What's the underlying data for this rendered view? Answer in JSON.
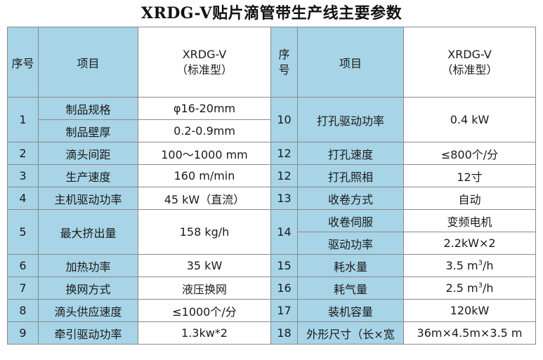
{
  "title": "XRDG-V贴片滴管带生产线主要参数",
  "header": {
    "seq_left": "序号",
    "item_left": "项目",
    "model_line1_left": "XRDG-V",
    "model_line2_left": "（标准型）",
    "seq_right_line1": "序",
    "seq_right_line2": "号",
    "item_right": "项目",
    "model_line1_right": "XRDG-V",
    "model_line2_right": "（标准型）"
  },
  "left": [
    {
      "no": "1",
      "items": [
        {
          "name": "制品规格",
          "value": "φ16-20mm"
        },
        {
          "name": "制品壁厚",
          "value": "0.2-0.9mm"
        }
      ]
    },
    {
      "no": "2",
      "items": [
        {
          "name": "滴头间距",
          "value": "100～1000 mm"
        }
      ]
    },
    {
      "no": "3",
      "items": [
        {
          "name": "生产速度",
          "value": "160 m/min"
        }
      ]
    },
    {
      "no": "4",
      "items": [
        {
          "name": "主机驱动功率",
          "value": "45 kW（直流）"
        }
      ]
    },
    {
      "no": "5",
      "items": [
        {
          "name": "最大挤出量",
          "value": "158 kg/h"
        }
      ]
    },
    {
      "no": "6",
      "items": [
        {
          "name": "加热功率",
          "value": "35 kW"
        }
      ]
    },
    {
      "no": "7",
      "items": [
        {
          "name": "换网方式",
          "value": "液压换网"
        }
      ]
    },
    {
      "no": "8",
      "items": [
        {
          "name": "滴头供应速度",
          "value": "≤1000个/分"
        }
      ]
    },
    {
      "no": "9",
      "items": [
        {
          "name": "牵引驱动功率",
          "value": "1.3kw*2"
        }
      ]
    }
  ],
  "right": [
    {
      "no": "10",
      "name": "打孔驱动功率",
      "value": "0.4 kW"
    },
    {
      "no": "12",
      "name": "打孔速度",
      "value": "≤800个/分"
    },
    {
      "no": "12",
      "name": "打孔照相",
      "value": "12寸"
    },
    {
      "no": "13",
      "name": "收卷方式",
      "value": "自动"
    },
    {
      "no": "14",
      "sub": [
        {
          "name": "收卷伺服",
          "value": "变频电机"
        },
        {
          "name": "驱动功率",
          "value": "2.2kW×2"
        }
      ]
    },
    {
      "no": "15",
      "name": "耗水量",
      "value_main": "3.5 m",
      "value_sup": "3",
      "value_tail": "/h"
    },
    {
      "no": "16",
      "name": "耗气量",
      "value_main": "2.5 m",
      "value_sup": "3",
      "value_tail": "/h"
    },
    {
      "no": "17",
      "name": "装机容量",
      "value": "120kW"
    },
    {
      "no": "18",
      "name": "外形尺寸（长×宽",
      "value": "36m×4.5m×3.5 m"
    }
  ],
  "colors": {
    "header_bg": "#a7d4e6",
    "border": "#8a8a8a"
  }
}
